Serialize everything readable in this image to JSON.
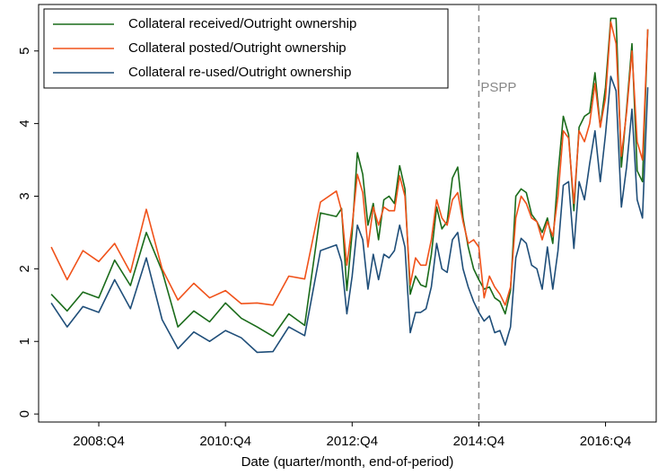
{
  "chart_data": {
    "type": "line",
    "xlabel": "Date (quarter/month, end-of-period)",
    "x": [
      2008,
      2008.25,
      2008.5,
      2008.75,
      2009,
      2009.25,
      2009.5,
      2009.75,
      2010,
      2010.25,
      2010.5,
      2010.75,
      2011,
      2011.25,
      2011.5,
      2011.75,
      2012,
      2012.25,
      2012.5,
      2012.583,
      2012.667,
      2012.75,
      2012.833,
      2012.917,
      2013,
      2013.083,
      2013.167,
      2013.25,
      2013.333,
      2013.417,
      2013.5,
      2013.583,
      2013.667,
      2013.75,
      2013.833,
      2013.917,
      2014,
      2014.083,
      2014.167,
      2014.25,
      2014.333,
      2014.417,
      2014.5,
      2014.583,
      2014.667,
      2014.75,
      2014.833,
      2014.917,
      2015,
      2015.083,
      2015.167,
      2015.25,
      2015.333,
      2015.417,
      2015.5,
      2015.583,
      2015.667,
      2015.75,
      2015.833,
      2015.917,
      2016,
      2016.083,
      2016.167,
      2016.25,
      2016.333,
      2016.417,
      2016.5,
      2016.583,
      2016.667,
      2016.75,
      2016.833,
      2016.917,
      2017,
      2017.083,
      2017.167,
      2017.25,
      2017.333,
      2017.417
    ],
    "series": [
      {
        "name": "Collateral received/Outright ownership",
        "color": "#1a6b1a",
        "values": [
          1.65,
          1.42,
          1.68,
          1.6,
          2.12,
          1.77,
          2.5,
          1.97,
          1.2,
          1.42,
          1.27,
          1.53,
          1.32,
          1.2,
          1.07,
          1.38,
          1.22,
          2.77,
          2.72,
          2.83,
          1.7,
          2.5,
          3.6,
          3.3,
          2.6,
          2.9,
          2.4,
          2.95,
          3.0,
          2.9,
          3.42,
          3.1,
          1.65,
          1.9,
          1.78,
          1.75,
          2.2,
          2.85,
          2.55,
          2.65,
          3.25,
          3.4,
          2.7,
          2.3,
          2.0,
          1.85,
          1.72,
          1.75,
          1.6,
          1.55,
          1.38,
          1.7,
          3.0,
          3.1,
          3.05,
          2.75,
          2.65,
          2.5,
          2.7,
          2.35,
          3.3,
          4.1,
          3.85,
          2.8,
          3.95,
          4.1,
          4.15,
          4.7,
          3.95,
          4.5,
          5.45,
          5.45,
          3.4,
          4.2,
          5.1,
          3.35,
          3.2,
          5.3
        ]
      },
      {
        "name": "Collateral posted/Outright ownership",
        "color": "#f0521a",
        "values": [
          2.3,
          1.85,
          2.25,
          2.1,
          2.35,
          1.95,
          2.82,
          2.0,
          1.57,
          1.8,
          1.6,
          1.7,
          1.52,
          1.53,
          1.5,
          1.9,
          1.86,
          2.92,
          3.07,
          2.8,
          2.05,
          2.6,
          3.3,
          3.05,
          2.3,
          2.85,
          2.6,
          2.85,
          2.8,
          2.8,
          3.28,
          3.0,
          1.78,
          2.15,
          2.05,
          2.05,
          2.4,
          2.95,
          2.7,
          2.6,
          2.95,
          3.05,
          2.65,
          2.35,
          2.4,
          2.3,
          1.6,
          1.9,
          1.75,
          1.65,
          1.5,
          1.75,
          2.7,
          3.0,
          2.9,
          2.7,
          2.65,
          2.4,
          2.65,
          2.45,
          3.0,
          3.9,
          3.8,
          2.9,
          3.9,
          3.75,
          4.0,
          4.55,
          3.95,
          4.35,
          5.4,
          5.1,
          3.55,
          4.15,
          5.0,
          3.75,
          3.5,
          5.3
        ]
      },
      {
        "name": "Collateral re-used/Outright ownership",
        "color": "#1f4e79",
        "values": [
          1.53,
          1.2,
          1.48,
          1.4,
          1.85,
          1.45,
          2.15,
          1.3,
          0.9,
          1.13,
          1.0,
          1.15,
          1.05,
          0.85,
          0.86,
          1.2,
          1.08,
          2.25,
          2.33,
          2.1,
          1.38,
          1.9,
          2.6,
          2.4,
          1.72,
          2.2,
          1.85,
          2.2,
          2.15,
          2.25,
          2.6,
          2.3,
          1.12,
          1.4,
          1.4,
          1.45,
          1.75,
          2.35,
          2.0,
          1.95,
          2.4,
          2.5,
          2.0,
          1.75,
          1.55,
          1.4,
          1.28,
          1.35,
          1.12,
          1.15,
          0.95,
          1.2,
          2.15,
          2.42,
          2.35,
          2.05,
          2.0,
          1.72,
          2.3,
          1.72,
          2.25,
          3.15,
          3.2,
          2.28,
          3.2,
          2.95,
          3.45,
          3.9,
          3.2,
          3.85,
          4.65,
          4.45,
          2.85,
          3.4,
          4.2,
          2.95,
          2.7,
          4.5
        ]
      }
    ],
    "xlim": [
      2007.8,
      2017.55
    ],
    "xticks": [
      {
        "value": 2008.75,
        "label": "2008:Q4"
      },
      {
        "value": 2010.75,
        "label": "2010:Q4"
      },
      {
        "value": 2012.75,
        "label": "2012:Q4"
      },
      {
        "value": 2014.75,
        "label": "2014:Q4"
      },
      {
        "value": 2016.75,
        "label": "2016:Q4"
      }
    ],
    "ylim": [
      -0.11,
      5.64
    ],
    "yticks": [
      0,
      1,
      2,
      3,
      4,
      5
    ],
    "annotations": [
      {
        "label": "PSPP",
        "x": 2014.75
      }
    ],
    "legend": "upper left"
  }
}
